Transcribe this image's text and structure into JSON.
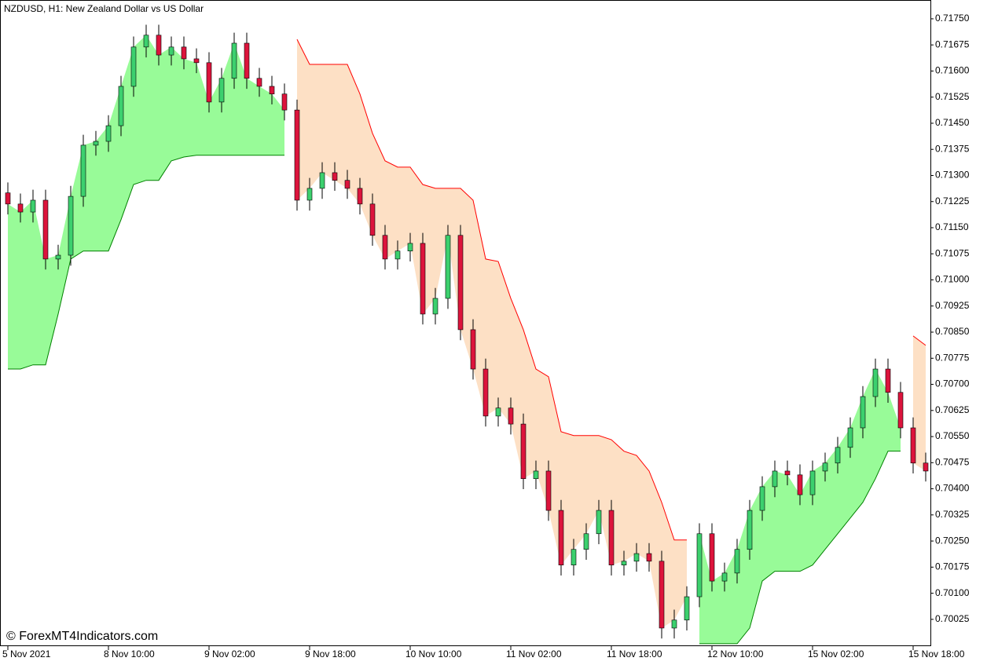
{
  "chart_data": {
    "type": "candlestick",
    "title": "NZDUSD, H1:  New Zealand Dollar vs US Dollar",
    "watermark": "© ForexMT4Indicators.com",
    "categories": [
      "5 Nov 2021",
      null,
      null,
      null,
      null,
      null,
      null,
      null,
      "8 Nov 10:00",
      null,
      null,
      null,
      null,
      null,
      null,
      null,
      "9 Nov 02:00",
      null,
      null,
      null,
      null,
      null,
      null,
      null,
      "9 Nov 18:00",
      null,
      null,
      null,
      null,
      null,
      null,
      null,
      "10 Nov 10:00",
      null,
      null,
      null,
      null,
      null,
      null,
      null,
      "11 Nov 02:00",
      null,
      null,
      null,
      null,
      null,
      null,
      null,
      "11 Nov 18:00",
      null,
      null,
      null,
      null,
      null,
      null,
      null,
      "12 Nov 10:00",
      null,
      null,
      null,
      null,
      null,
      null,
      null,
      "15 Nov 02:00",
      null,
      null,
      null,
      null,
      null,
      null,
      null,
      "15 Nov 18:00",
      null
    ],
    "open": [
      0.7125,
      0.71218,
      0.71195,
      0.71229,
      0.7106,
      0.71071,
      0.7124,
      0.71387,
      0.71398,
      0.71443,
      0.71556,
      0.71669,
      0.71703,
      0.71646,
      0.71669,
      0.71635,
      0.71624,
      0.71511,
      0.71579,
      0.7168,
      0.71579,
      0.71556,
      0.71534,
      0.71488,
      0.71229,
      0.71263,
      0.71308,
      0.71286,
      0.71263,
      0.71218,
      0.71128,
      0.7106,
      0.71083,
      0.71105,
      0.70902,
      0.70947,
      0.71128,
      0.70857,
      0.70744,
      0.70609,
      0.70632,
      0.70586,
      0.70429,
      0.70451,
      0.70338,
      0.70181,
      0.70226,
      0.70271,
      0.70338,
      0.70181,
      0.70192,
      0.70214,
      0.70192,
      0.7,
      0.70023,
      0.7009,
      0.70271,
      0.70135,
      0.70158,
      0.70226,
      0.70338,
      0.70406,
      0.70451,
      0.7044,
      0.70383,
      0.70451,
      0.70474,
      0.70519,
      0.70575,
      0.70665,
      0.70744,
      0.70677,
      0.70575,
      0.70474
    ],
    "high": [
      0.7128,
      0.71248,
      0.71259,
      0.71259,
      0.71101,
      0.7127,
      0.71417,
      0.71428,
      0.71473,
      0.71586,
      0.71699,
      0.71733,
      0.71733,
      0.71699,
      0.71699,
      0.71665,
      0.71654,
      0.71609,
      0.7171,
      0.7171,
      0.71609,
      0.71586,
      0.71564,
      0.71518,
      0.71293,
      0.71338,
      0.71338,
      0.71316,
      0.71293,
      0.71248,
      0.71158,
      0.71113,
      0.71135,
      0.71135,
      0.70977,
      0.71158,
      0.71158,
      0.70887,
      0.70774,
      0.70662,
      0.70662,
      0.70616,
      0.70481,
      0.70481,
      0.70368,
      0.70256,
      0.70301,
      0.70368,
      0.70368,
      0.70222,
      0.70244,
      0.70244,
      0.70222,
      0.70053,
      0.7012,
      0.70301,
      0.70301,
      0.70188,
      0.70256,
      0.70368,
      0.70436,
      0.70481,
      0.70481,
      0.7047,
      0.70481,
      0.70504,
      0.70549,
      0.70605,
      0.70695,
      0.70774,
      0.70774,
      0.70707,
      0.70605,
      0.70504
    ],
    "low": [
      0.71188,
      0.71165,
      0.71165,
      0.7103,
      0.7103,
      0.71041,
      0.7121,
      0.71357,
      0.71368,
      0.71413,
      0.71526,
      0.71639,
      0.71616,
      0.71616,
      0.71605,
      0.71594,
      0.71481,
      0.71481,
      0.71549,
      0.71549,
      0.71526,
      0.71504,
      0.71458,
      0.71199,
      0.71199,
      0.71233,
      0.71256,
      0.71233,
      0.71188,
      0.71098,
      0.7103,
      0.7103,
      0.71053,
      0.70872,
      0.70872,
      0.70917,
      0.70827,
      0.70714,
      0.70579,
      0.70579,
      0.70556,
      0.70399,
      0.70399,
      0.70308,
      0.70151,
      0.70151,
      0.70196,
      0.70241,
      0.70151,
      0.70151,
      0.70162,
      0.70162,
      0.6997,
      0.6997,
      0.69993,
      0.7006,
      0.70105,
      0.70105,
      0.70128,
      0.70196,
      0.70308,
      0.70376,
      0.7041,
      0.70353,
      0.70353,
      0.70421,
      0.70444,
      0.70489,
      0.70545,
      0.70635,
      0.70647,
      0.70545,
      0.70444,
      0.70421
    ],
    "close": [
      0.71218,
      0.71195,
      0.71229,
      0.7106,
      0.71071,
      0.7124,
      0.71387,
      0.71398,
      0.71443,
      0.71556,
      0.71669,
      0.71703,
      0.71646,
      0.71669,
      0.71635,
      0.71624,
      0.71511,
      0.71579,
      0.7168,
      0.71579,
      0.71556,
      0.71534,
      0.71488,
      0.71229,
      0.71263,
      0.71308,
      0.71286,
      0.71263,
      0.71218,
      0.71128,
      0.7106,
      0.71083,
      0.71105,
      0.70902,
      0.70947,
      0.71128,
      0.70857,
      0.70744,
      0.70609,
      0.70632,
      0.70586,
      0.70429,
      0.70451,
      0.70338,
      0.70181,
      0.70226,
      0.70271,
      0.70338,
      0.70181,
      0.70192,
      0.70214,
      0.70192,
      0.7,
      0.70023,
      0.7009,
      0.70271,
      0.70135,
      0.70158,
      0.70226,
      0.70338,
      0.70406,
      0.70451,
      0.7044,
      0.70383,
      0.70451,
      0.70474,
      0.70519,
      0.70575,
      0.70665,
      0.70744,
      0.70677,
      0.70575,
      0.70474,
      0.70451
    ],
    "up_color": "#3cd06e",
    "down_color": "#dc143c",
    "bands": [
      {
        "color": "#008000",
        "fill": "#98fb98",
        "values": [
          0.70744,
          0.70744,
          0.70756,
          0.70756,
          0.70902,
          0.7106,
          0.71083,
          0.71083,
          0.71083,
          0.71173,
          0.71274,
          0.71286,
          0.71286,
          0.71342,
          0.71353,
          0.71358,
          0.71358,
          0.71358,
          0.71358,
          0.71358,
          0.71358,
          0.71358,
          0.71358,
          null,
          null,
          null,
          null,
          null,
          null,
          null,
          null,
          null,
          null,
          null,
          null,
          null,
          null,
          null,
          null,
          null,
          null,
          null,
          null,
          null,
          null,
          null,
          null,
          null,
          null,
          null,
          null,
          null,
          null,
          null,
          null,
          0.69955,
          0.69955,
          0.69955,
          0.69955,
          0.7,
          0.70135,
          0.70163,
          0.70163,
          0.70163,
          0.70181,
          0.70226,
          0.70271,
          0.70316,
          0.70361,
          0.70429,
          0.70508,
          0.70508,
          null,
          null
        ]
      },
      {
        "color": "#ff0000",
        "fill": "#fde0c5",
        "values": [
          null,
          null,
          null,
          null,
          null,
          null,
          null,
          null,
          null,
          null,
          null,
          null,
          null,
          null,
          null,
          null,
          null,
          null,
          null,
          null,
          null,
          null,
          null,
          0.71691,
          0.71619,
          0.71619,
          0.71619,
          0.71619,
          0.71534,
          0.71421,
          0.71342,
          0.71324,
          0.71324,
          0.71274,
          0.71263,
          0.71263,
          0.71263,
          0.71229,
          0.7106,
          0.71053,
          0.70947,
          0.70857,
          0.70744,
          0.70722,
          0.70564,
          0.70553,
          0.70553,
          0.70553,
          0.70541,
          0.70508,
          0.70496,
          0.70451,
          0.70361,
          0.70253,
          0.70253,
          null,
          null,
          null,
          null,
          null,
          null,
          null,
          null,
          null,
          null,
          null,
          null,
          null,
          null,
          null,
          null,
          null,
          0.70839,
          0.70812
        ]
      }
    ],
    "ylim": [
      0.69948,
      0.71804
    ],
    "yticks": [
      {
        "value": 0.7175,
        "label": "0.71750"
      },
      0.71675,
      {
        "value": 0.716,
        "label": "0.71600"
      },
      0.71525,
      {
        "value": 0.7145,
        "label": "0.71450"
      },
      0.71375,
      {
        "value": 0.713,
        "label": "0.71300"
      },
      0.71225,
      {
        "value": 0.7115,
        "label": "0.71150"
      },
      0.71075,
      {
        "value": 0.71,
        "label": "0.71000"
      },
      0.70925,
      {
        "value": 0.7085,
        "label": "0.70850"
      },
      0.70775,
      {
        "value": 0.707,
        "label": "0.70700"
      },
      0.70625,
      {
        "value": 0.7055,
        "label": "0.70550"
      },
      0.70475,
      {
        "value": 0.704,
        "label": "0.70400"
      },
      0.70325,
      {
        "value": 0.7025,
        "label": "0.70250"
      },
      0.70175,
      {
        "value": 0.701,
        "label": "0.70100"
      },
      0.70025
    ]
  }
}
